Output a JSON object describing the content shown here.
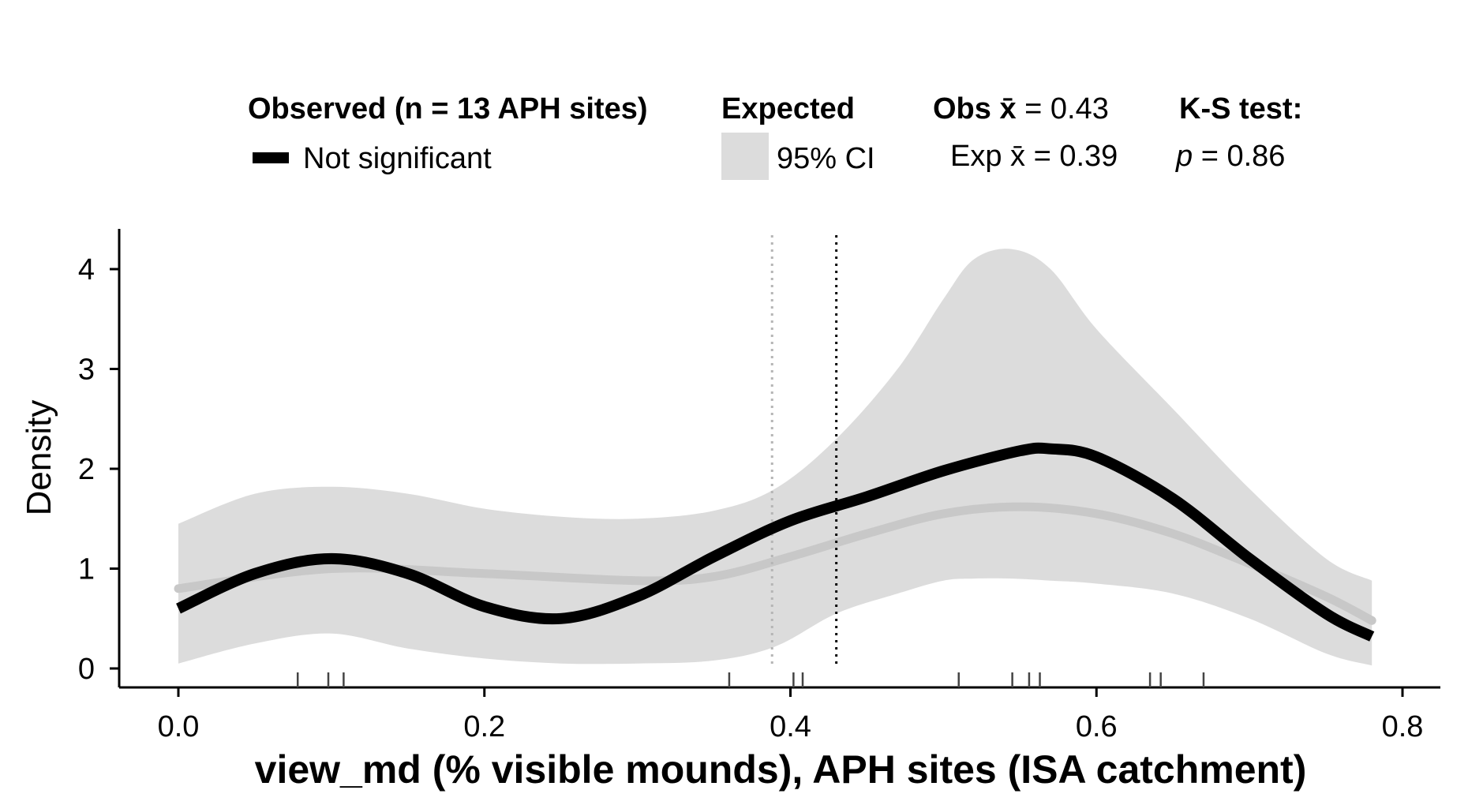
{
  "chart_data": {
    "type": "line",
    "title": "",
    "xlabel": "view_md (% visible mounds), APH sites (ISA catchment)",
    "ylabel": "Density",
    "xlim": [
      0.0,
      0.8
    ],
    "ylim": [
      0,
      4.2
    ],
    "x_ticks": [
      "0.0",
      "0.2",
      "0.4",
      "0.6",
      "0.8"
    ],
    "y_ticks": [
      "0",
      "1",
      "2",
      "3",
      "4"
    ],
    "legend": {
      "observed_title": "Observed (n = 13 APH sites)",
      "observed_entry": "Not significant",
      "expected_title": "Expected",
      "expected_entry": "95% CI",
      "obs_mean_label": "Obs x̄ = 0.43",
      "exp_mean_label": "Exp x̄ = 0.39",
      "ks_title": "K-S test:",
      "ks_p_symbol": "p",
      "ks_p_value": " = 0.86"
    },
    "observed_mean": 0.43,
    "expected_mean": 0.388,
    "series": [
      {
        "name": "Not significant",
        "x": [
          0.0,
          0.05,
          0.1,
          0.15,
          0.2,
          0.25,
          0.3,
          0.35,
          0.4,
          0.45,
          0.5,
          0.55,
          0.57,
          0.6,
          0.65,
          0.7,
          0.75,
          0.78
        ],
        "y": [
          0.6,
          0.95,
          1.1,
          0.95,
          0.62,
          0.5,
          0.72,
          1.12,
          1.48,
          1.72,
          1.98,
          2.18,
          2.2,
          2.12,
          1.7,
          1.1,
          0.55,
          0.32
        ]
      },
      {
        "name": "Expected",
        "x": [
          0.0,
          0.1,
          0.2,
          0.3,
          0.35,
          0.4,
          0.45,
          0.5,
          0.55,
          0.6,
          0.65,
          0.7,
          0.75,
          0.78
        ],
        "y": [
          0.8,
          1.0,
          0.95,
          0.88,
          0.92,
          1.12,
          1.35,
          1.55,
          1.62,
          1.55,
          1.35,
          1.05,
          0.72,
          0.48
        ]
      }
    ],
    "ci_band": {
      "x": [
        0.0,
        0.05,
        0.1,
        0.15,
        0.2,
        0.25,
        0.3,
        0.35,
        0.39,
        0.43,
        0.47,
        0.5,
        0.52,
        0.545,
        0.57,
        0.6,
        0.65,
        0.7,
        0.75,
        0.78
      ],
      "upper": [
        1.45,
        1.75,
        1.82,
        1.75,
        1.6,
        1.52,
        1.5,
        1.58,
        1.8,
        2.3,
        3.0,
        3.7,
        4.1,
        4.2,
        4.0,
        3.4,
        2.6,
        1.8,
        1.1,
        0.88
      ],
      "lower": [
        0.05,
        0.25,
        0.35,
        0.2,
        0.1,
        0.05,
        0.05,
        0.08,
        0.22,
        0.55,
        0.75,
        0.88,
        0.9,
        0.9,
        0.88,
        0.85,
        0.75,
        0.5,
        0.15,
        0.03
      ]
    },
    "rug_x": [
      0.078,
      0.098,
      0.108,
      0.36,
      0.402,
      0.408,
      0.51,
      0.545,
      0.556,
      0.563,
      0.635,
      0.642,
      0.67
    ],
    "grid": false
  }
}
